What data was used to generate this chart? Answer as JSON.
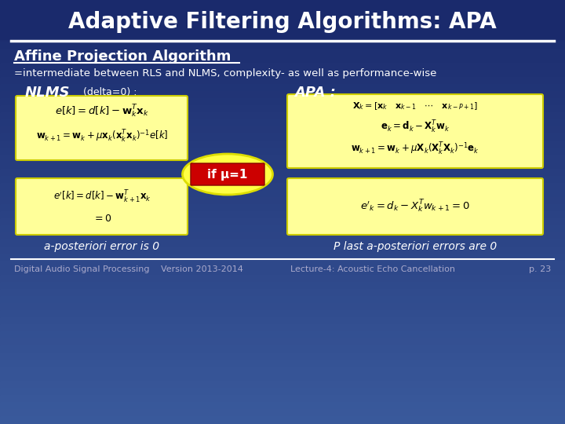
{
  "title": "Adaptive Filtering Algorithms: APA",
  "bg_color_top": "#1a2a6c",
  "bg_color_bottom": "#3a5a9c",
  "title_color": "#ffffff",
  "title_fontsize": 20,
  "section_title": "Affine Projection Algorithm",
  "section_subtitle": "=intermediate between RLS and NLMS, complexity- as well as performance-wise",
  "nlms_label": "NLMS",
  "nlms_sub": " (delta=0) :",
  "apa_label": "APA :",
  "yellow_box_color": "#ffff99",
  "red_box_color": "#cc0000",
  "if_mu_text": "if μ=1",
  "aposteriori_left": "a-posteriori error is 0",
  "aposteriori_right": "P last a-posteriori errors are 0",
  "footer_left": "Digital Audio Signal Processing",
  "footer_center_left": "Version 2013-2014",
  "footer_center_right": "Lecture-4: Acoustic Echo Cancellation",
  "footer_right": "p. 23",
  "footer_color": "#aaaacc",
  "footer_fontsize": 8
}
